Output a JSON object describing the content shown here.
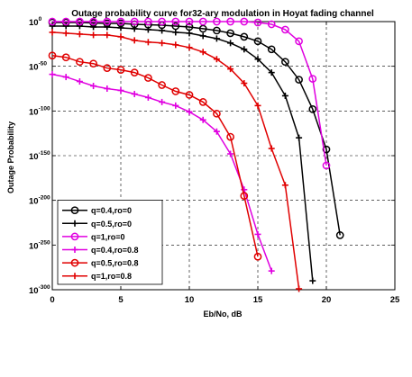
{
  "chart_data": {
    "type": "line",
    "title": "Outage probability curve for32-ary modulation in Hoyat fading channel",
    "xlabel": "Eb/No, dB",
    "ylabel": "Outage Probability",
    "xlim": [
      0,
      25
    ],
    "ylim_log10": [
      -300,
      0
    ],
    "y_scale": "log",
    "grid": true,
    "legend_position": "bottom-left",
    "x_ticks": [
      0,
      5,
      10,
      15,
      20,
      25
    ],
    "x_tick_labels": [
      "0",
      "5",
      "10",
      "15",
      "20",
      "25"
    ],
    "y_ticks_log10": [
      0,
      -50,
      -100,
      -150,
      -200,
      -250,
      -300
    ],
    "y_tick_labels": [
      {
        "base": "10",
        "exp": "0"
      },
      {
        "base": "10",
        "exp": "-50"
      },
      {
        "base": "10",
        "exp": "-100"
      },
      {
        "base": "10",
        "exp": "-150"
      },
      {
        "base": "10",
        "exp": "-200"
      },
      {
        "base": "10",
        "exp": "-250"
      },
      {
        "base": "10",
        "exp": "-300"
      }
    ],
    "series": [
      {
        "name": "q=0.4,ro=0",
        "color": "#000000",
        "marker": "circle",
        "x": [
          0,
          1,
          2,
          3,
          4,
          5,
          6,
          7,
          8,
          9,
          10,
          11,
          12,
          13,
          14,
          15,
          16,
          17,
          18,
          19,
          20,
          21
        ],
        "y_log10": [
          -1,
          -1,
          -1,
          -1.5,
          -2,
          -2,
          -3,
          -3.5,
          -4,
          -5,
          -6,
          -8,
          -10,
          -13,
          -17,
          -22,
          -31,
          -45,
          -65,
          -98,
          -143,
          -239
        ]
      },
      {
        "name": "q=0.5,ro=0",
        "color": "#000000",
        "marker": "plus",
        "x": [
          0,
          1,
          2,
          3,
          4,
          5,
          6,
          7,
          8,
          9,
          10,
          11,
          12,
          13,
          14,
          15,
          16,
          17,
          18,
          19
        ],
        "y_log10": [
          -5,
          -5,
          -5,
          -6,
          -6,
          -7,
          -8,
          -9,
          -10,
          -12,
          -13,
          -16,
          -19,
          -24,
          -31,
          -42,
          -57,
          -83,
          -130,
          -290
        ]
      },
      {
        "name": "q=1,ro=0",
        "color": "#e000e0",
        "marker": "circle",
        "x": [
          0,
          1,
          2,
          3,
          4,
          5,
          6,
          7,
          8,
          9,
          10,
          11,
          12,
          13,
          14,
          15,
          16,
          17,
          18,
          19,
          20
        ],
        "y_log10": [
          0,
          0,
          0,
          0,
          0,
          0,
          0,
          0,
          0,
          0,
          0,
          0,
          0,
          0,
          0,
          -1,
          -3,
          -9,
          -22,
          -64,
          -161
        ]
      },
      {
        "name": "q=0.4,ro=0.8",
        "color": "#e000e0",
        "marker": "plus",
        "x": [
          0,
          1,
          2,
          3,
          4,
          5,
          6,
          7,
          8,
          9,
          10,
          11,
          12,
          13,
          14,
          15,
          16
        ],
        "y_log10": [
          -59,
          -62,
          -67,
          -72,
          -75,
          -77,
          -81,
          -85,
          -90,
          -94,
          -101,
          -110,
          -123,
          -148,
          -188,
          -238,
          -279
        ]
      },
      {
        "name": "q=0.5,ro=0.8",
        "color": "#e00000",
        "marker": "circle",
        "x": [
          0,
          1,
          2,
          3,
          4,
          5,
          6,
          7,
          8,
          9,
          10,
          11,
          12,
          13,
          14,
          15
        ],
        "y_log10": [
          -38,
          -40,
          -45,
          -47,
          -52,
          -54,
          -57,
          -63,
          -71,
          -78,
          -82,
          -90,
          -103,
          -129,
          -195,
          -263
        ]
      },
      {
        "name": "q=1,ro=0.8",
        "color": "#e00000",
        "marker": "plus",
        "x": [
          0,
          1,
          2,
          3,
          4,
          5,
          6,
          7,
          8,
          9,
          10,
          11,
          12,
          13,
          14,
          15,
          16,
          17,
          18
        ],
        "y_log10": [
          -12,
          -13,
          -14,
          -15,
          -15,
          -17,
          -21,
          -23,
          -24,
          -26,
          -29,
          -34,
          -42,
          -53,
          -69,
          -94,
          -142,
          -183,
          -299
        ]
      }
    ]
  }
}
